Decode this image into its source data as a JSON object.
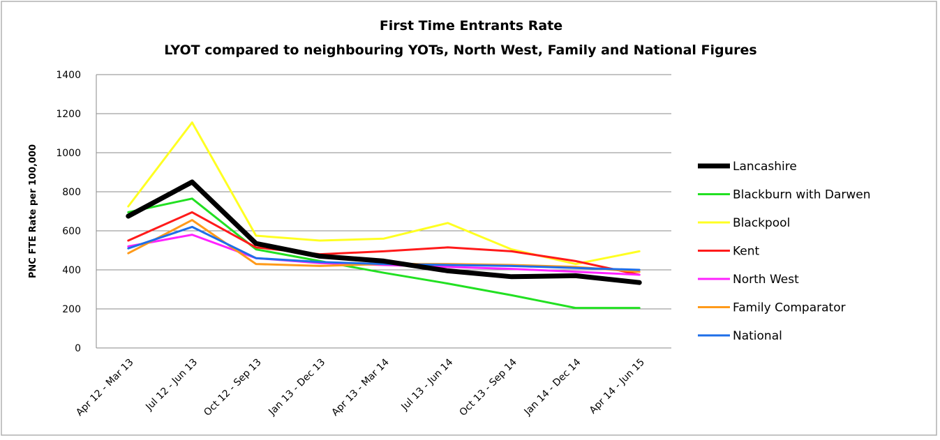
{
  "chart_data": {
    "type": "line",
    "title": "First Time Entrants Rate",
    "subtitle": "LYOT compared to neighbouring YOTs, North West, Family and National Figures",
    "xlabel": "",
    "ylabel": "PNC FTE Rate per 100,000",
    "ylim": [
      0,
      1400
    ],
    "yticks": [
      0,
      200,
      400,
      600,
      800,
      1000,
      1200,
      1400
    ],
    "grid": true,
    "legend": "right",
    "categories": [
      "Apr 12 - Mar 13",
      "Jul 12 - Jun 13",
      "Oct 12 - Sep 13",
      "Jan 13 - Dec 13",
      "Apr 13 - Mar 14",
      "Jul 13 - Jun 14",
      "Oct 13 - Sep 14",
      "Jan 14 - Dec 14",
      "Apr 14 - Jun 15"
    ],
    "series": [
      {
        "name": "Lancashire",
        "color": "#000000",
        "values": [
          675,
          850,
          535,
          470,
          445,
          395,
          365,
          370,
          335
        ]
      },
      {
        "name": "Blackburn with Darwen",
        "color": "#22e022",
        "values": [
          695,
          765,
          505,
          445,
          385,
          330,
          270,
          205,
          205
        ]
      },
      {
        "name": "Blackpool",
        "color": "#ffff22",
        "values": [
          725,
          1155,
          575,
          550,
          560,
          640,
          505,
          430,
          495
        ]
      },
      {
        "name": "Kent",
        "color": "#ff1a1a",
        "values": [
          550,
          695,
          515,
          480,
          495,
          515,
          495,
          445,
          375
        ]
      },
      {
        "name": "North West",
        "color": "#ff22ff",
        "values": [
          520,
          580,
          460,
          435,
          425,
          415,
          405,
          390,
          375
        ]
      },
      {
        "name": "Family Comparator",
        "color": "#ff9a1a",
        "values": [
          485,
          655,
          430,
          420,
          430,
          430,
          425,
          415,
          390
        ]
      },
      {
        "name": "National",
        "color": "#1e6ee8",
        "values": [
          510,
          620,
          460,
          440,
          430,
          425,
          420,
          410,
          400
        ]
      }
    ]
  }
}
